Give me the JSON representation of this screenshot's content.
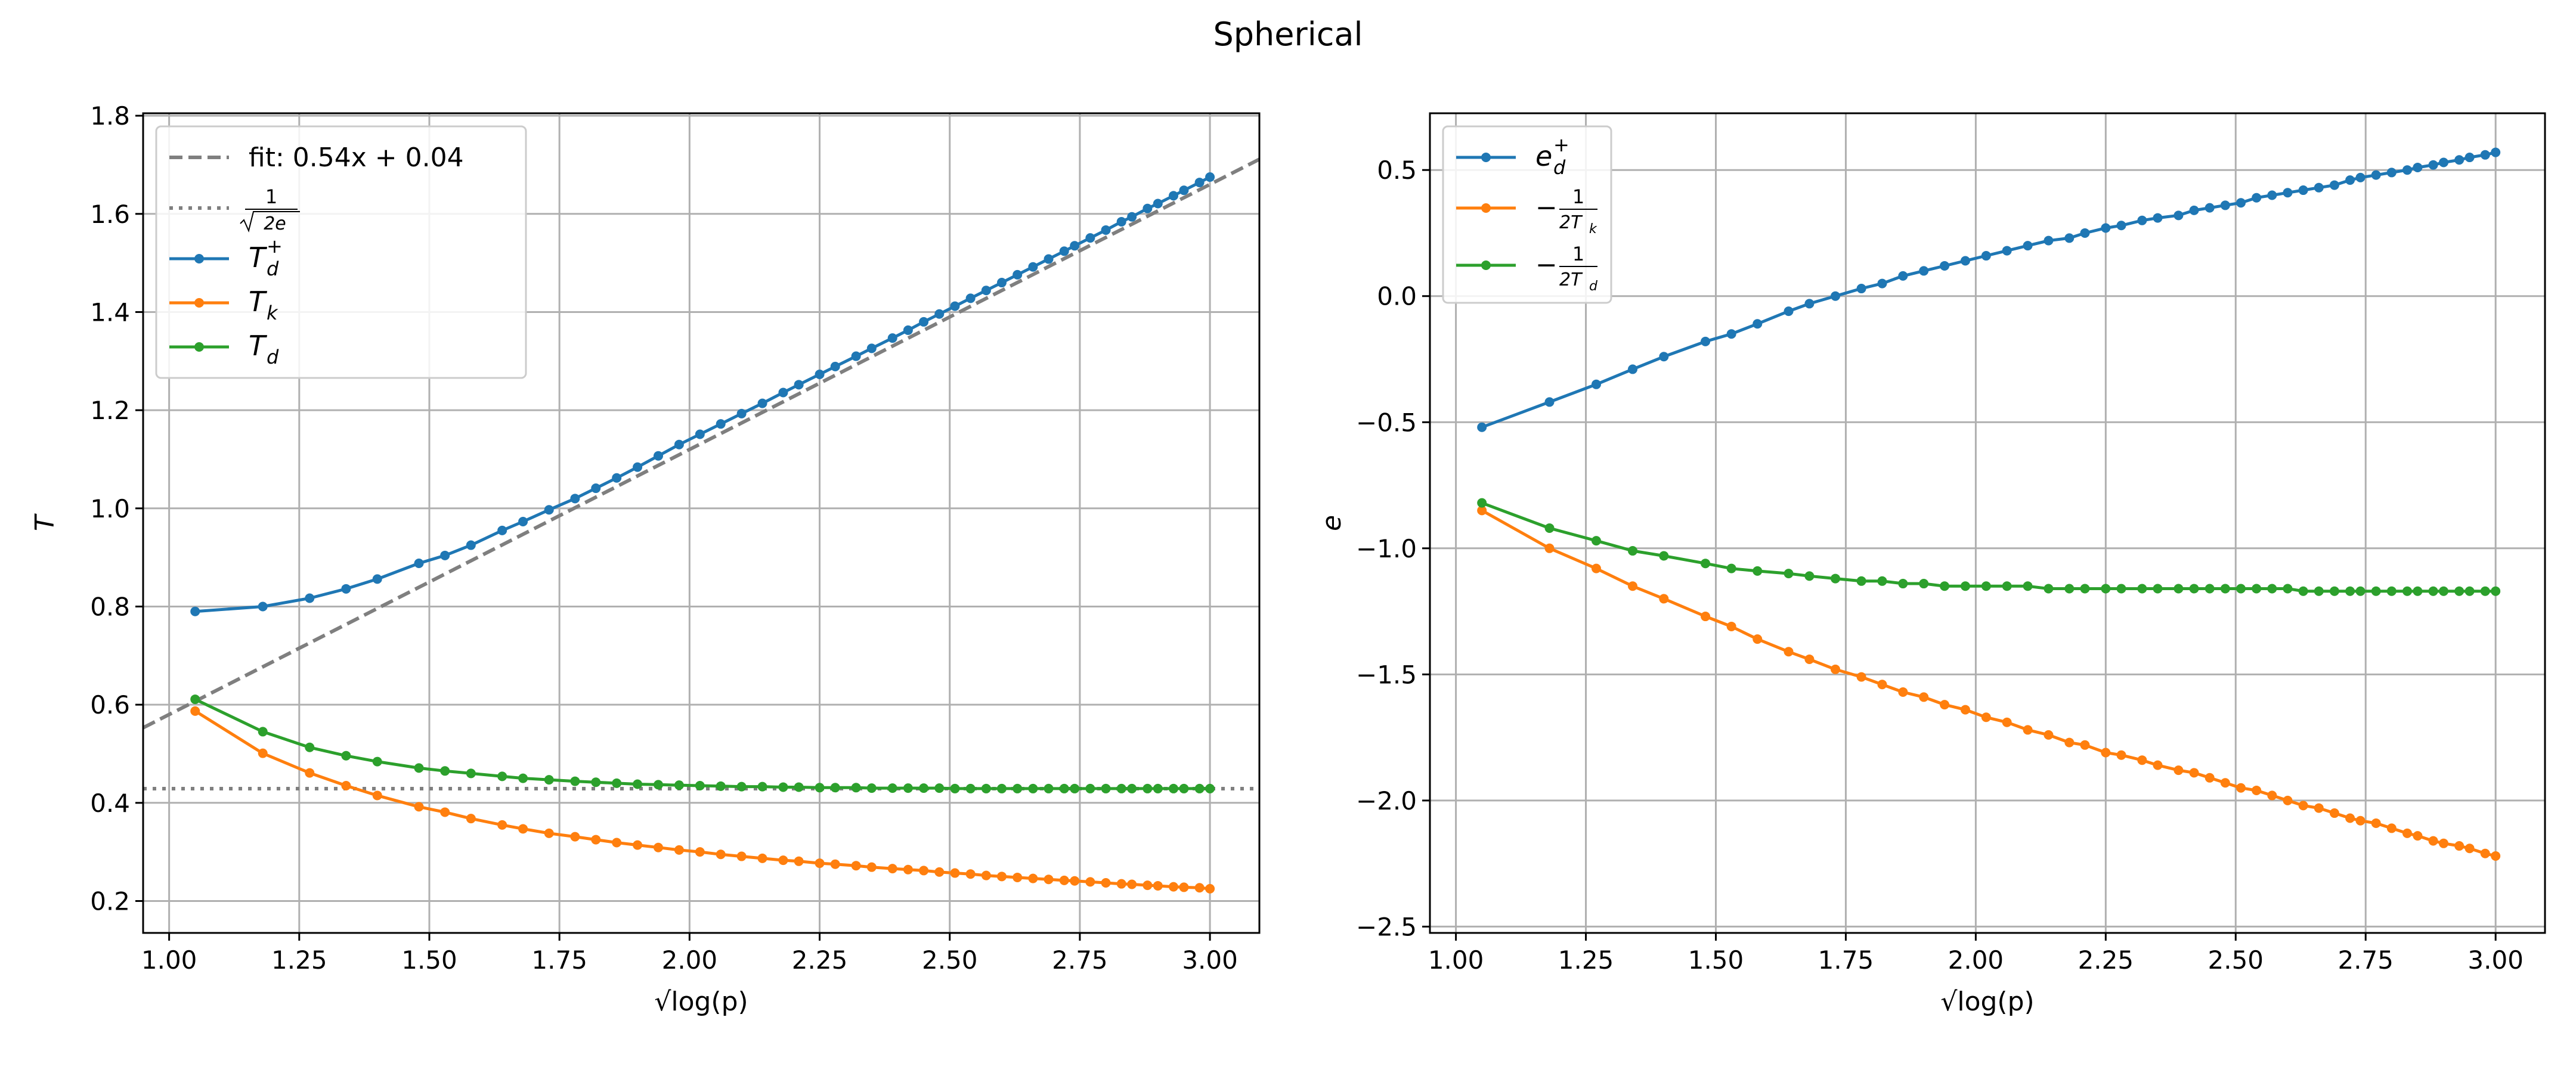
{
  "figure": {
    "suptitle": "Spherical"
  },
  "colors": {
    "series_blue": "#1f77b4",
    "series_orange": "#ff7f0e",
    "series_green": "#2ca02c",
    "reference_gray": "#7f7f7f",
    "grid": "#b0b0b0",
    "axes": "#000000"
  },
  "chart_data": [
    {
      "type": "line",
      "panel": "left",
      "xlabel": "√log(p)",
      "ylabel": "T",
      "xlim": [
        0.95,
        3.095
      ],
      "ylim": [
        0.135,
        1.805
      ],
      "xticks": [
        1.0,
        1.25,
        1.5,
        1.75,
        2.0,
        2.25,
        2.5,
        2.75,
        3.0
      ],
      "xtick_labels": [
        "1.00",
        "1.25",
        "1.50",
        "1.75",
        "2.00",
        "2.25",
        "2.50",
        "2.75",
        "3.00"
      ],
      "yticks": [
        0.2,
        0.4,
        0.6,
        0.8,
        1.0,
        1.2,
        1.4,
        1.6,
        1.8
      ],
      "ytick_labels": [
        "0.2",
        "0.4",
        "0.6",
        "0.8",
        "1.0",
        "1.2",
        "1.4",
        "1.6",
        "1.8"
      ],
      "grid": true,
      "legend_position": "upper-left",
      "x": [
        1.05,
        1.18,
        1.27,
        1.34,
        1.4,
        1.48,
        1.53,
        1.58,
        1.64,
        1.68,
        1.73,
        1.78,
        1.82,
        1.86,
        1.9,
        1.94,
        1.98,
        2.02,
        2.06,
        2.1,
        2.14,
        2.18,
        2.21,
        2.25,
        2.28,
        2.32,
        2.35,
        2.39,
        2.42,
        2.45,
        2.48,
        2.51,
        2.54,
        2.57,
        2.6,
        2.63,
        2.66,
        2.69,
        2.72,
        2.74,
        2.77,
        2.8,
        2.83,
        2.85,
        2.88,
        2.9,
        2.93,
        2.95,
        2.98,
        3.0
      ],
      "reference_lines": [
        {
          "kind": "line",
          "label": "fit: 0.54x + 0.04",
          "slope": 0.54,
          "intercept": 0.04,
          "style": "dashed",
          "color": "#7f7f7f"
        },
        {
          "kind": "horizontal",
          "label_parts": {
            "num": "1",
            "den": "2e"
          },
          "y": 0.4289,
          "style": "dotted",
          "color": "#7f7f7f"
        }
      ],
      "series": [
        {
          "name": "T_d^+",
          "label_parts": {
            "base": "T",
            "sub": "d",
            "sup": "+"
          },
          "color": "#1f77b4",
          "values": [
            0.79,
            0.8,
            0.817,
            0.836,
            0.856,
            0.888,
            0.904,
            0.925,
            0.955,
            0.973,
            0.997,
            1.02,
            1.041,
            1.062,
            1.084,
            1.107,
            1.13,
            1.151,
            1.172,
            1.193,
            1.214,
            1.236,
            1.252,
            1.273,
            1.289,
            1.31,
            1.326,
            1.347,
            1.363,
            1.38,
            1.396,
            1.412,
            1.428,
            1.444,
            1.46,
            1.476,
            1.492,
            1.508,
            1.524,
            1.535,
            1.551,
            1.567,
            1.584,
            1.594,
            1.611,
            1.621,
            1.637,
            1.648,
            1.664,
            1.675
          ]
        },
        {
          "name": "T_k",
          "label_parts": {
            "base": "T",
            "sub": "k"
          },
          "color": "#ff7f0e",
          "values": [
            0.587,
            0.501,
            0.461,
            0.435,
            0.415,
            0.392,
            0.381,
            0.368,
            0.355,
            0.347,
            0.338,
            0.331,
            0.325,
            0.319,
            0.314,
            0.309,
            0.304,
            0.3,
            0.295,
            0.291,
            0.287,
            0.283,
            0.281,
            0.277,
            0.275,
            0.272,
            0.269,
            0.266,
            0.264,
            0.262,
            0.259,
            0.257,
            0.255,
            0.252,
            0.25,
            0.248,
            0.246,
            0.244,
            0.242,
            0.241,
            0.239,
            0.237,
            0.235,
            0.234,
            0.232,
            0.231,
            0.229,
            0.228,
            0.227,
            0.225
          ]
        },
        {
          "name": "T_d",
          "label_parts": {
            "base": "T",
            "sub": "d"
          },
          "color": "#2ca02c",
          "values": [
            0.611,
            0.545,
            0.513,
            0.496,
            0.484,
            0.471,
            0.465,
            0.46,
            0.454,
            0.45,
            0.447,
            0.444,
            0.442,
            0.44,
            0.438,
            0.437,
            0.436,
            0.435,
            0.434,
            0.433,
            0.433,
            0.432,
            0.432,
            0.431,
            0.431,
            0.431,
            0.43,
            0.43,
            0.43,
            0.43,
            0.43,
            0.429,
            0.429,
            0.429,
            0.429,
            0.429,
            0.429,
            0.429,
            0.429,
            0.429,
            0.429,
            0.429,
            0.429,
            0.429,
            0.429,
            0.429,
            0.429,
            0.429,
            0.429,
            0.429
          ]
        }
      ]
    },
    {
      "type": "line",
      "panel": "right",
      "xlabel": "√log(p)",
      "ylabel": "e",
      "xlim": [
        0.95,
        3.095
      ],
      "ylim": [
        -2.525,
        0.725
      ],
      "xticks": [
        1.0,
        1.25,
        1.5,
        1.75,
        2.0,
        2.25,
        2.5,
        2.75,
        3.0
      ],
      "xtick_labels": [
        "1.00",
        "1.25",
        "1.50",
        "1.75",
        "2.00",
        "2.25",
        "2.50",
        "2.75",
        "3.00"
      ],
      "yticks": [
        -2.5,
        -2.0,
        -1.5,
        -1.0,
        -0.5,
        0.0,
        0.5
      ],
      "ytick_labels": [
        "−2.5",
        "−2.0",
        "−1.5",
        "−1.0",
        "−0.5",
        "0.0",
        "0.5"
      ],
      "grid": true,
      "legend_position": "upper-left",
      "x": [
        1.05,
        1.18,
        1.27,
        1.34,
        1.4,
        1.48,
        1.53,
        1.58,
        1.64,
        1.68,
        1.73,
        1.78,
        1.82,
        1.86,
        1.9,
        1.94,
        1.98,
        2.02,
        2.06,
        2.1,
        2.14,
        2.18,
        2.21,
        2.25,
        2.28,
        2.32,
        2.35,
        2.39,
        2.42,
        2.45,
        2.48,
        2.51,
        2.54,
        2.57,
        2.6,
        2.63,
        2.66,
        2.69,
        2.72,
        2.74,
        2.77,
        2.8,
        2.83,
        2.85,
        2.88,
        2.9,
        2.93,
        2.95,
        2.98,
        3.0
      ],
      "series": [
        {
          "name": "e_d^+",
          "label_parts": {
            "base": "e",
            "sub": "d",
            "sup": "+"
          },
          "color": "#1f77b4",
          "values": [
            -0.52,
            -0.42,
            -0.35,
            -0.29,
            -0.24,
            -0.18,
            -0.15,
            -0.11,
            -0.06,
            -0.03,
            0.0,
            0.03,
            0.05,
            0.08,
            0.1,
            0.12,
            0.14,
            0.16,
            0.18,
            0.2,
            0.22,
            0.23,
            0.25,
            0.27,
            0.28,
            0.3,
            0.31,
            0.32,
            0.34,
            0.35,
            0.36,
            0.37,
            0.39,
            0.4,
            0.41,
            0.42,
            0.43,
            0.44,
            0.46,
            0.47,
            0.48,
            0.49,
            0.5,
            0.51,
            0.52,
            0.53,
            0.54,
            0.55,
            0.56,
            0.57
          ]
        },
        {
          "name": "−1/(2T_k)",
          "label_parts": {
            "prefix": "−",
            "num": "1",
            "den_base": "2T",
            "den_sub": "k"
          },
          "color": "#ff7f0e",
          "values": [
            -0.85,
            -1.0,
            -1.08,
            -1.15,
            -1.2,
            -1.27,
            -1.31,
            -1.36,
            -1.41,
            -1.44,
            -1.48,
            -1.51,
            -1.54,
            -1.57,
            -1.59,
            -1.62,
            -1.64,
            -1.67,
            -1.69,
            -1.72,
            -1.74,
            -1.77,
            -1.78,
            -1.81,
            -1.82,
            -1.84,
            -1.86,
            -1.88,
            -1.89,
            -1.91,
            -1.93,
            -1.95,
            -1.96,
            -1.98,
            -2.0,
            -2.02,
            -2.03,
            -2.05,
            -2.07,
            -2.08,
            -2.09,
            -2.11,
            -2.13,
            -2.14,
            -2.16,
            -2.17,
            -2.18,
            -2.19,
            -2.21,
            -2.22
          ]
        },
        {
          "name": "−1/(2T_d)",
          "label_parts": {
            "prefix": "−",
            "num": "1",
            "den_base": "2T",
            "den_sub": "d"
          },
          "color": "#2ca02c",
          "values": [
            -0.82,
            -0.92,
            -0.97,
            -1.01,
            -1.03,
            -1.06,
            -1.08,
            -1.09,
            -1.1,
            -1.11,
            -1.12,
            -1.13,
            -1.13,
            -1.14,
            -1.14,
            -1.15,
            -1.15,
            -1.15,
            -1.15,
            -1.15,
            -1.16,
            -1.16,
            -1.16,
            -1.16,
            -1.16,
            -1.16,
            -1.16,
            -1.16,
            -1.16,
            -1.16,
            -1.16,
            -1.16,
            -1.16,
            -1.16,
            -1.16,
            -1.17,
            -1.17,
            -1.17,
            -1.17,
            -1.17,
            -1.17,
            -1.17,
            -1.17,
            -1.17,
            -1.17,
            -1.17,
            -1.17,
            -1.17,
            -1.17,
            -1.17
          ]
        }
      ]
    }
  ]
}
